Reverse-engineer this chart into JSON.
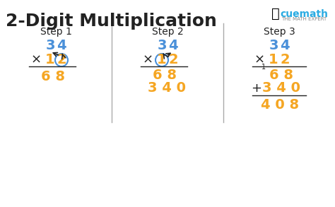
{
  "title": "2-Digit Multiplication",
  "title_fontsize": 18,
  "title_color": "#222222",
  "bg_color": "#ffffff",
  "step_labels": [
    "Step 1",
    "Step 2",
    "Step 3"
  ],
  "blue_color": "#4a90d9",
  "orange_color": "#f5a623",
  "black_color": "#222222",
  "divider_color": "#aaaaaa",
  "cuemath_blue": "#29abe2",
  "cuemath_orange": "#f7941d"
}
